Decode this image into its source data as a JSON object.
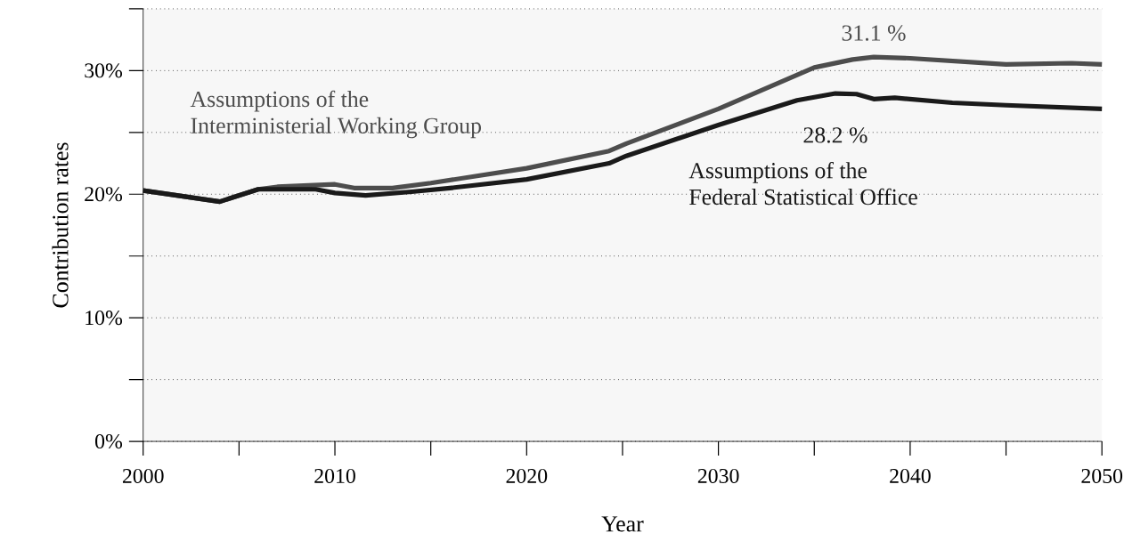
{
  "chart_data": {
    "type": "line",
    "xlabel": "Year",
    "ylabel": "Contribution rates",
    "xlim": [
      2000,
      2050
    ],
    "ylim": [
      0,
      35
    ],
    "xticks": [
      2000,
      {
        "value": 2005,
        "label": null
      },
      2010,
      {
        "value": 2015,
        "label": null
      },
      2020,
      {
        "value": 2025,
        "label": null
      },
      2030,
      {
        "value": 2035,
        "label": null
      },
      2040,
      {
        "value": 2045,
        "label": null
      },
      2050
    ],
    "yticks": [
      {
        "value": 0,
        "label": "0%"
      },
      {
        "value": 5,
        "label": null
      },
      {
        "value": 10,
        "label": "10%"
      },
      {
        "value": 15,
        "label": null
      },
      {
        "value": 20,
        "label": "20%"
      },
      {
        "value": 25,
        "label": null
      },
      {
        "value": 30,
        "label": "30%"
      },
      {
        "value": 35,
        "label": null
      }
    ],
    "grid": "y",
    "marker": "none",
    "line_style": "solid",
    "series": [
      {
        "name": "Assumptions of the\nInterministerial Working Group",
        "color": "#4d4d4d",
        "x": [
          2000,
          2004,
          2006,
          2007,
          2010,
          2011,
          2013,
          2015,
          2020,
          2024.3,
          2025.2,
          2030,
          2035,
          2037,
          2038.1,
          2040,
          2045,
          2048.4,
          2050
        ],
        "values": [
          20.3,
          19.4,
          20.4,
          20.6,
          20.8,
          20.5,
          20.5,
          20.9,
          22.1,
          23.5,
          24.1,
          26.9,
          30.25,
          30.9,
          31.1,
          31.0,
          30.5,
          30.6,
          30.5
        ]
      },
      {
        "name": "Assumptions of the\nFederal Statistical Office",
        "color": "#1a1a1a",
        "x": [
          2000,
          2004,
          2006,
          2009,
          2010,
          2011.6,
          2014,
          2016,
          2020,
          2024.3,
          2025.2,
          2030,
          2034.1,
          2036.1,
          2037.2,
          2038.1,
          2039.2,
          2042.2,
          2045,
          2050
        ],
        "values": [
          20.3,
          19.4,
          20.4,
          20.4,
          20.1,
          19.9,
          20.2,
          20.5,
          21.2,
          22.5,
          23.1,
          25.6,
          27.6,
          28.15,
          28.1,
          27.7,
          27.8,
          27.4,
          27.2,
          26.9
        ]
      }
    ],
    "annotations": [
      {
        "text": "31.1 %",
        "x": 2038.1,
        "y": 31.1
      },
      {
        "text": "28.2 %",
        "x": 2036.1,
        "y": 28.15
      }
    ]
  }
}
